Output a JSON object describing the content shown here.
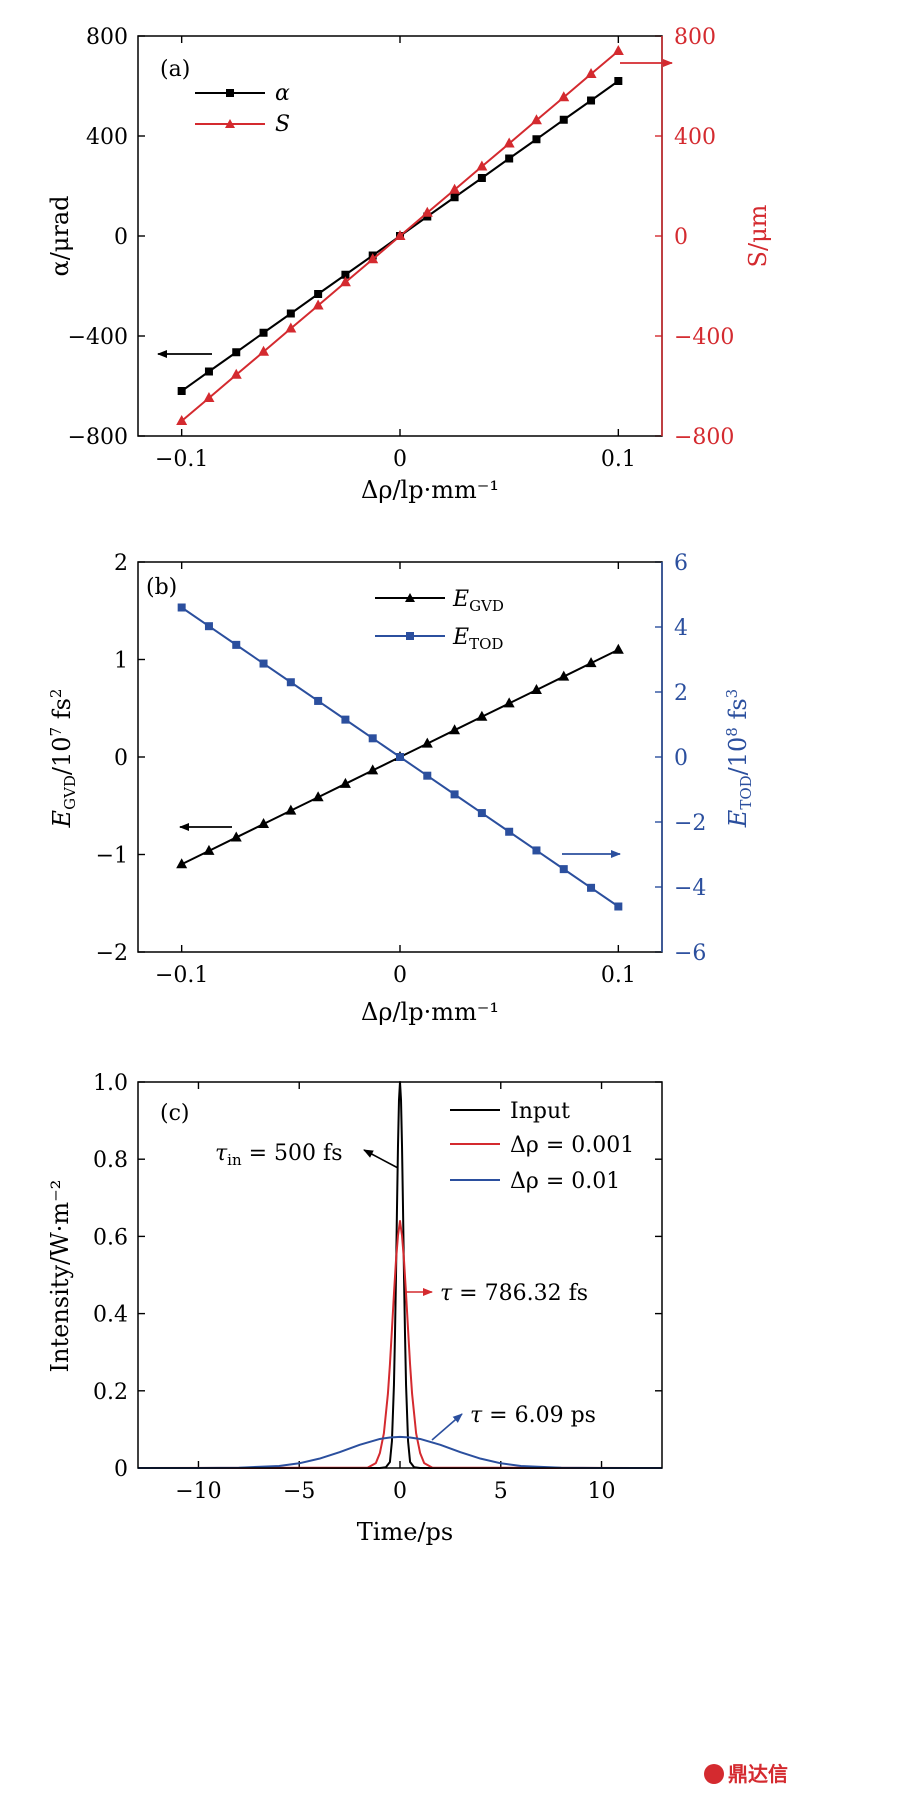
{
  "colors": {
    "black": "#000000",
    "red": "#d42a2f",
    "blue": "#2b4f9e"
  },
  "watermark": {
    "text": "鼎达信",
    "color": "#d42a2f"
  },
  "chart_data": [
    {
      "type": "line",
      "panel_label": "(a)",
      "xlabel": "Δρ/lp·mm⁻¹",
      "ylabel_left": "α/μrad",
      "ylabel_right": "S/μm",
      "xlim": [
        -0.12,
        0.12
      ],
      "ylim_left": [
        -800,
        800
      ],
      "ylim_right": [
        -800,
        800
      ],
      "xticks": [
        -0.1,
        0,
        0.1
      ],
      "xtick_labels": [
        "−0.1",
        "0",
        "0.1"
      ],
      "yticks_left": [
        -800,
        -400,
        0,
        400,
        800
      ],
      "ytick_labels_left": [
        "−800",
        "−400",
        "0",
        "400",
        "800"
      ],
      "yticks_right": [
        -800,
        -400,
        0,
        400,
        800
      ],
      "ytick_labels_right": [
        "−800",
        "−400",
        "0",
        "400",
        "800"
      ],
      "x": [
        -0.1,
        -0.0875,
        -0.075,
        -0.0625,
        -0.05,
        -0.0375,
        -0.025,
        -0.0125,
        0,
        0.0125,
        0.025,
        0.0375,
        0.05,
        0.0625,
        0.075,
        0.0875,
        0.1
      ],
      "series": [
        {
          "name": "α",
          "axis": "left",
          "color": "#000000",
          "marker": "square",
          "values": [
            -620,
            -542,
            -465,
            -387,
            -310,
            -232,
            -155,
            -78,
            0,
            78,
            155,
            232,
            310,
            387,
            465,
            542,
            620
          ]
        },
        {
          "name": "S",
          "axis": "right",
          "color": "#d42a2f",
          "marker": "triangle",
          "values": [
            -740,
            -648,
            -555,
            -463,
            -370,
            -278,
            -185,
            -93,
            0,
            93,
            185,
            278,
            370,
            463,
            555,
            648,
            740
          ]
        }
      ],
      "legend_placement": "top-left"
    },
    {
      "type": "line",
      "panel_label": "(b)",
      "xlabel": "Δρ/lp·mm⁻¹",
      "ylabel_left": "E_GVD/10⁷ fs²",
      "ylabel_right": "E_TOD/10⁸ fs³",
      "xlim": [
        -0.12,
        0.12
      ],
      "ylim_left": [
        -2,
        2
      ],
      "ylim_right": [
        -6,
        6
      ],
      "xticks": [
        -0.1,
        0,
        0.1
      ],
      "xtick_labels": [
        "−0.1",
        "0",
        "0.1"
      ],
      "yticks_left": [
        -2,
        -1,
        0,
        1,
        2
      ],
      "ytick_labels_left": [
        "−2",
        "−1",
        "0",
        "1",
        "2"
      ],
      "yticks_right": [
        -6,
        -4,
        -2,
        0,
        2,
        4,
        6
      ],
      "ytick_labels_right": [
        "−6",
        "−4",
        "−2",
        "0",
        "2",
        "4",
        "6"
      ],
      "x": [
        -0.1,
        -0.0875,
        -0.075,
        -0.0625,
        -0.05,
        -0.0375,
        -0.025,
        -0.0125,
        0,
        0.0125,
        0.025,
        0.0375,
        0.05,
        0.0625,
        0.075,
        0.0875,
        0.1
      ],
      "series": [
        {
          "name": "E_GVD",
          "axis": "left",
          "color": "#000000",
          "marker": "triangle",
          "values": [
            -1.1,
            -0.9625,
            -0.825,
            -0.6875,
            -0.55,
            -0.4125,
            -0.275,
            -0.1375,
            0,
            0.1375,
            0.275,
            0.4125,
            0.55,
            0.6875,
            0.825,
            0.9625,
            1.1
          ]
        },
        {
          "name": "E_TOD",
          "axis": "right",
          "color": "#2b4f9e",
          "marker": "square",
          "values": [
            4.6,
            4.025,
            3.45,
            2.875,
            2.3,
            1.725,
            1.15,
            0.575,
            0,
            -0.575,
            -1.15,
            -1.725,
            -2.3,
            -2.875,
            -3.45,
            -4.025,
            -4.6
          ]
        }
      ],
      "legend_placement": "top-center"
    },
    {
      "type": "line",
      "panel_label": "(c)",
      "xlabel": "Time/ps",
      "ylabel_left": "Intensity/W·m⁻²",
      "xlim": [
        -13,
        13
      ],
      "ylim_left": [
        0,
        1.0
      ],
      "xticks": [
        -10,
        -5,
        0,
        5,
        10
      ],
      "xtick_labels": [
        "−10",
        "−5",
        "0",
        "5",
        "10"
      ],
      "yticks_left": [
        0,
        0.2,
        0.4,
        0.6,
        0.8,
        1.0
      ],
      "ytick_labels_left": [
        "0",
        "0.2",
        "0.4",
        "0.6",
        "0.8",
        "1.0"
      ],
      "series": [
        {
          "name": "Input",
          "color": "#000000",
          "x": [
            -13,
            -1.0,
            -0.7,
            -0.5,
            -0.4,
            -0.3,
            -0.25,
            -0.2,
            -0.15,
            -0.1,
            -0.05,
            0,
            0.05,
            0.1,
            0.15,
            0.2,
            0.25,
            0.3,
            0.4,
            0.5,
            0.7,
            1.0,
            13
          ],
          "values": [
            0,
            0,
            0.002,
            0.0155,
            0.0696,
            0.2151,
            0.3417,
            0.4929,
            0.6713,
            0.8328,
            0.9537,
            1.0,
            0.9537,
            0.8328,
            0.6713,
            0.4929,
            0.3417,
            0.2151,
            0.0696,
            0.0155,
            0.002,
            0,
            0
          ]
        },
        {
          "name": "Δρ = 0.001",
          "color": "#d42a2f",
          "x": [
            -13,
            -1.6,
            -1.2,
            -1.0,
            -0.8,
            -0.6,
            -0.5,
            -0.4,
            -0.3,
            -0.2,
            -0.1,
            0,
            0.1,
            0.2,
            0.3,
            0.4,
            0.5,
            0.6,
            0.8,
            1.0,
            1.2,
            1.6,
            13
          ],
          "values": [
            0,
            0.0009,
            0.0125,
            0.0385,
            0.0899,
            0.1923,
            0.2681,
            0.3589,
            0.4508,
            0.5369,
            0.602,
            0.64,
            0.602,
            0.5369,
            0.4508,
            0.3589,
            0.2681,
            0.1923,
            0.0899,
            0.0385,
            0.0125,
            0.0009,
            0
          ]
        },
        {
          "name": "Δρ = 0.01",
          "color": "#2b4f9e",
          "x": [
            -13,
            -10,
            -8,
            -6,
            -5,
            -4,
            -3,
            -2,
            -1,
            -0.5,
            0,
            0.5,
            1,
            2,
            3,
            4,
            5,
            6,
            8,
            10,
            13
          ],
          "values": [
            0.0,
            0.0001,
            0.0008,
            0.0053,
            0.0122,
            0.0242,
            0.041,
            0.06,
            0.0752,
            0.0791,
            0.0805,
            0.0791,
            0.0752,
            0.06,
            0.041,
            0.0242,
            0.0122,
            0.0053,
            0.0008,
            0.0001,
            0.0
          ]
        }
      ],
      "legend_placement": "top-right",
      "annotations": [
        "τ_in = 500 fs",
        "τ = 786.32 fs",
        "τ = 6.09 ps"
      ]
    }
  ]
}
